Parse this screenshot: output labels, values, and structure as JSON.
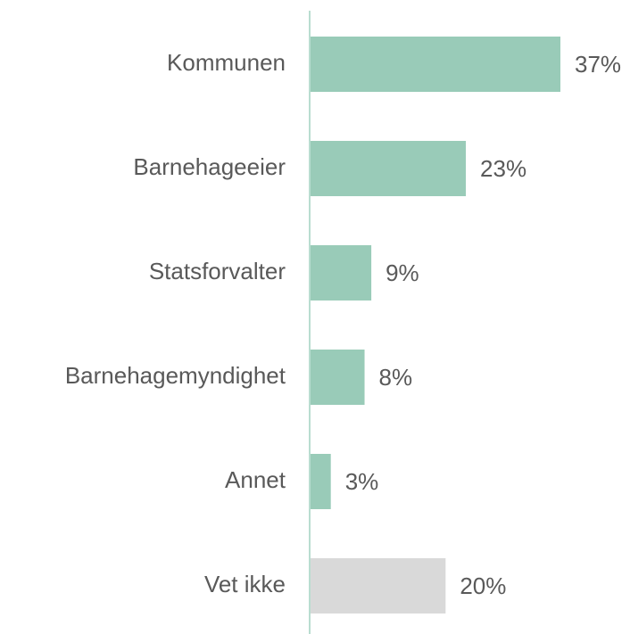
{
  "chart_data": {
    "type": "bar",
    "orientation": "horizontal",
    "categories": [
      "Kommunen",
      "Barnehageeier",
      "Statsforvalter",
      "Barnehagemyndighet",
      "Annet",
      "Vet ikke"
    ],
    "values": [
      37,
      23,
      9,
      8,
      3,
      20
    ],
    "value_labels": [
      "37%",
      "23%",
      "9%",
      "8%",
      "3%",
      "20%"
    ],
    "colors": [
      "#99cbb8",
      "#99cbb8",
      "#99cbb8",
      "#99cbb8",
      "#99cbb8",
      "#d9d9d9"
    ]
  }
}
